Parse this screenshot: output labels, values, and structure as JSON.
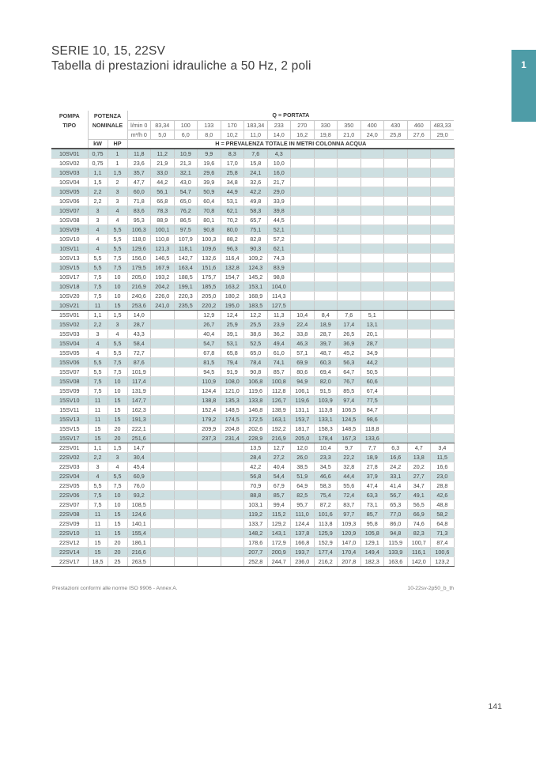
{
  "page": {
    "title_line1": "SERIE 10, 15, 22SV",
    "title_line2": "Tabella di prestazioni idrauliche a 50 Hz, 2 poli",
    "section_tab": "1",
    "footer_left": "Prestazioni conformi alle norme ISO 9906 - Annex A.",
    "footer_right": "10-22sv-2p50_b_th",
    "page_number": "141"
  },
  "colors": {
    "accent_teal": "#4e9ca7",
    "row_shaded": "#cddfe1"
  },
  "table": {
    "headers": {
      "pompa": "POMPA",
      "tipo": "TIPO",
      "potenza": "POTENZA",
      "nominale": "NOMINALE",
      "kw": "kW",
      "hp": "HP",
      "q_title": "Q = PORTATA",
      "h_title": "H = PREVALENZA TOTALE IN METRI COLONNA ACQUA",
      "lmin_label": "l/min",
      "m3h_label": "m³/h",
      "lmin_values": [
        "0",
        "83,34",
        "100",
        "133",
        "170",
        "183,34",
        "233",
        "270",
        "330",
        "350",
        "400",
        "430",
        "460",
        "483,33"
      ],
      "m3h_values": [
        "0",
        "5,0",
        "6,0",
        "8,0",
        "10,2",
        "11,0",
        "14,0",
        "16,2",
        "19,8",
        "21,0",
        "24,0",
        "25,8",
        "27,6",
        "29,0"
      ]
    },
    "rows": [
      {
        "type": "10SV01",
        "kw": "0,75",
        "hp": "1",
        "h": [
          "11,8",
          "11,2",
          "10,9",
          "9,9",
          "8,3",
          "7,6",
          "4,3",
          "",
          "",
          "",
          "",
          "",
          "",
          ""
        ]
      },
      {
        "type": "10SV02",
        "kw": "0,75",
        "hp": "1",
        "h": [
          "23,6",
          "21,9",
          "21,3",
          "19,6",
          "17,0",
          "15,8",
          "10,0",
          "",
          "",
          "",
          "",
          "",
          "",
          ""
        ]
      },
      {
        "type": "10SV03",
        "kw": "1,1",
        "hp": "1,5",
        "h": [
          "35,7",
          "33,0",
          "32,1",
          "29,6",
          "25,8",
          "24,1",
          "16,0",
          "",
          "",
          "",
          "",
          "",
          "",
          ""
        ]
      },
      {
        "type": "10SV04",
        "kw": "1,5",
        "hp": "2",
        "h": [
          "47,7",
          "44,2",
          "43,0",
          "39,9",
          "34,8",
          "32,6",
          "21,7",
          "",
          "",
          "",
          "",
          "",
          "",
          ""
        ]
      },
      {
        "type": "10SV05",
        "kw": "2,2",
        "hp": "3",
        "h": [
          "60,0",
          "56,1",
          "54,7",
          "50,9",
          "44,9",
          "42,2",
          "29,0",
          "",
          "",
          "",
          "",
          "",
          "",
          ""
        ]
      },
      {
        "type": "10SV06",
        "kw": "2,2",
        "hp": "3",
        "h": [
          "71,8",
          "66,8",
          "65,0",
          "60,4",
          "53,1",
          "49,8",
          "33,9",
          "",
          "",
          "",
          "",
          "",
          "",
          ""
        ]
      },
      {
        "type": "10SV07",
        "kw": "3",
        "hp": "4",
        "h": [
          "83,6",
          "78,3",
          "76,2",
          "70,8",
          "62,1",
          "58,3",
          "39,8",
          "",
          "",
          "",
          "",
          "",
          "",
          ""
        ]
      },
      {
        "type": "10SV08",
        "kw": "3",
        "hp": "4",
        "h": [
          "95,3",
          "88,9",
          "86,5",
          "80,1",
          "70,2",
          "65,7",
          "44,5",
          "",
          "",
          "",
          "",
          "",
          "",
          ""
        ]
      },
      {
        "type": "10SV09",
        "kw": "4",
        "hp": "5,5",
        "h": [
          "106,3",
          "100,1",
          "97,5",
          "90,8",
          "80,0",
          "75,1",
          "52,1",
          "",
          "",
          "",
          "",
          "",
          "",
          ""
        ]
      },
      {
        "type": "10SV10",
        "kw": "4",
        "hp": "5,5",
        "h": [
          "118,0",
          "110,8",
          "107,9",
          "100,3",
          "88,2",
          "82,8",
          "57,2",
          "",
          "",
          "",
          "",
          "",
          "",
          ""
        ]
      },
      {
        "type": "10SV11",
        "kw": "4",
        "hp": "5,5",
        "h": [
          "129,6",
          "121,3",
          "118,1",
          "109,6",
          "96,3",
          "90,3",
          "62,1",
          "",
          "",
          "",
          "",
          "",
          "",
          ""
        ]
      },
      {
        "type": "10SV13",
        "kw": "5,5",
        "hp": "7,5",
        "h": [
          "156,0",
          "146,5",
          "142,7",
          "132,6",
          "116,4",
          "109,2",
          "74,3",
          "",
          "",
          "",
          "",
          "",
          "",
          ""
        ]
      },
      {
        "type": "10SV15",
        "kw": "5,5",
        "hp": "7,5",
        "h": [
          "179,5",
          "167,9",
          "163,4",
          "151,6",
          "132,8",
          "124,3",
          "83,9",
          "",
          "",
          "",
          "",
          "",
          "",
          ""
        ]
      },
      {
        "type": "10SV17",
        "kw": "7,5",
        "hp": "10",
        "h": [
          "205,0",
          "193,2",
          "188,5",
          "175,7",
          "154,7",
          "145,2",
          "98,8",
          "",
          "",
          "",
          "",
          "",
          "",
          ""
        ]
      },
      {
        "type": "10SV18",
        "kw": "7,5",
        "hp": "10",
        "h": [
          "216,9",
          "204,2",
          "199,1",
          "185,5",
          "163,2",
          "153,1",
          "104,0",
          "",
          "",
          "",
          "",
          "",
          "",
          ""
        ]
      },
      {
        "type": "10SV20",
        "kw": "7,5",
        "hp": "10",
        "h": [
          "240,6",
          "226,0",
          "220,3",
          "205,0",
          "180,2",
          "168,9",
          "114,3",
          "",
          "",
          "",
          "",
          "",
          "",
          ""
        ]
      },
      {
        "type": "10SV21",
        "kw": "11",
        "hp": "15",
        "section_end": true,
        "h": [
          "253,6",
          "241,0",
          "235,5",
          "220,2",
          "195,0",
          "183,5",
          "127,5",
          "",
          "",
          "",
          "",
          "",
          "",
          ""
        ]
      },
      {
        "type": "15SV01",
        "kw": "1,1",
        "hp": "1,5",
        "h": [
          "14,0",
          "",
          "",
          "12,9",
          "12,4",
          "12,2",
          "11,3",
          "10,4",
          "8,4",
          "7,6",
          "5,1",
          "",
          "",
          ""
        ]
      },
      {
        "type": "15SV02",
        "kw": "2,2",
        "hp": "3",
        "h": [
          "28,7",
          "",
          "",
          "26,7",
          "25,9",
          "25,5",
          "23,9",
          "22,4",
          "18,9",
          "17,4",
          "13,1",
          "",
          "",
          ""
        ]
      },
      {
        "type": "15SV03",
        "kw": "3",
        "hp": "4",
        "h": [
          "43,3",
          "",
          "",
          "40,4",
          "39,1",
          "38,6",
          "36,2",
          "33,8",
          "28,7",
          "26,5",
          "20,1",
          "",
          "",
          ""
        ]
      },
      {
        "type": "15SV04",
        "kw": "4",
        "hp": "5,5",
        "h": [
          "58,4",
          "",
          "",
          "54,7",
          "53,1",
          "52,5",
          "49,4",
          "46,3",
          "39,7",
          "36,9",
          "28,7",
          "",
          "",
          ""
        ]
      },
      {
        "type": "15SV05",
        "kw": "4",
        "hp": "5,5",
        "h": [
          "72,7",
          "",
          "",
          "67,8",
          "65,8",
          "65,0",
          "61,0",
          "57,1",
          "48,7",
          "45,2",
          "34,9",
          "",
          "",
          ""
        ]
      },
      {
        "type": "15SV06",
        "kw": "5,5",
        "hp": "7,5",
        "h": [
          "87,6",
          "",
          "",
          "81,5",
          "79,4",
          "78,4",
          "74,1",
          "69,9",
          "60,3",
          "56,3",
          "44,2",
          "",
          "",
          ""
        ]
      },
      {
        "type": "15SV07",
        "kw": "5,5",
        "hp": "7,5",
        "h": [
          "101,9",
          "",
          "",
          "94,5",
          "91,9",
          "90,8",
          "85,7",
          "80,6",
          "69,4",
          "64,7",
          "50,5",
          "",
          "",
          ""
        ]
      },
      {
        "type": "15SV08",
        "kw": "7,5",
        "hp": "10",
        "h": [
          "117,4",
          "",
          "",
          "110,9",
          "108,0",
          "106,8",
          "100,8",
          "94,9",
          "82,0",
          "76,7",
          "60,6",
          "",
          "",
          ""
        ]
      },
      {
        "type": "15SV09",
        "kw": "7,5",
        "hp": "10",
        "h": [
          "131,9",
          "",
          "",
          "124,4",
          "121,0",
          "119,6",
          "112,8",
          "106,1",
          "91,5",
          "85,5",
          "67,4",
          "",
          "",
          ""
        ]
      },
      {
        "type": "15SV10",
        "kw": "11",
        "hp": "15",
        "h": [
          "147,7",
          "",
          "",
          "138,8",
          "135,3",
          "133,8",
          "126,7",
          "119,6",
          "103,9",
          "97,4",
          "77,5",
          "",
          "",
          ""
        ]
      },
      {
        "type": "15SV11",
        "kw": "11",
        "hp": "15",
        "h": [
          "162,3",
          "",
          "",
          "152,4",
          "148,5",
          "146,8",
          "138,9",
          "131,1",
          "113,8",
          "106,5",
          "84,7",
          "",
          "",
          ""
        ]
      },
      {
        "type": "15SV13",
        "kw": "11",
        "hp": "15",
        "h": [
          "191,3",
          "",
          "",
          "179,2",
          "174,5",
          "172,5",
          "163,1",
          "153,7",
          "133,1",
          "124,5",
          "98,6",
          "",
          "",
          ""
        ]
      },
      {
        "type": "15SV15",
        "kw": "15",
        "hp": "20",
        "h": [
          "222,1",
          "",
          "",
          "209,9",
          "204,8",
          "202,6",
          "192,2",
          "181,7",
          "158,3",
          "148,5",
          "118,8",
          "",
          "",
          ""
        ]
      },
      {
        "type": "15SV17",
        "kw": "15",
        "hp": "20",
        "section_end": true,
        "h": [
          "251,6",
          "",
          "",
          "237,3",
          "231,4",
          "228,9",
          "216,9",
          "205,0",
          "178,4",
          "167,3",
          "133,6",
          "",
          "",
          ""
        ]
      },
      {
        "type": "22SV01",
        "kw": "1,1",
        "hp": "1,5",
        "h": [
          "14,7",
          "",
          "",
          "",
          "",
          "13,5",
          "12,7",
          "12,0",
          "10,4",
          "9,7",
          "7,7",
          "6,3",
          "4,7",
          "3,4"
        ]
      },
      {
        "type": "22SV02",
        "kw": "2,2",
        "hp": "3",
        "h": [
          "30,4",
          "",
          "",
          "",
          "",
          "28,4",
          "27,2",
          "26,0",
          "23,3",
          "22,2",
          "18,9",
          "16,6",
          "13,8",
          "11,5"
        ]
      },
      {
        "type": "22SV03",
        "kw": "3",
        "hp": "4",
        "h": [
          "45,4",
          "",
          "",
          "",
          "",
          "42,2",
          "40,4",
          "38,5",
          "34,5",
          "32,8",
          "27,8",
          "24,2",
          "20,2",
          "16,6"
        ]
      },
      {
        "type": "22SV04",
        "kw": "4",
        "hp": "5,5",
        "h": [
          "60,9",
          "",
          "",
          "",
          "",
          "56,8",
          "54,4",
          "51,9",
          "46,6",
          "44,4",
          "37,9",
          "33,1",
          "27,7",
          "23,0"
        ]
      },
      {
        "type": "22SV05",
        "kw": "5,5",
        "hp": "7,5",
        "h": [
          "76,0",
          "",
          "",
          "",
          "",
          "70,9",
          "67,9",
          "64,9",
          "58,3",
          "55,6",
          "47,4",
          "41,4",
          "34,7",
          "28,8"
        ]
      },
      {
        "type": "22SV06",
        "kw": "7,5",
        "hp": "10",
        "h": [
          "93,2",
          "",
          "",
          "",
          "",
          "88,8",
          "85,7",
          "82,5",
          "75,4",
          "72,4",
          "63,3",
          "56,7",
          "49,1",
          "42,6"
        ]
      },
      {
        "type": "22SV07",
        "kw": "7,5",
        "hp": "10",
        "h": [
          "108,5",
          "",
          "",
          "",
          "",
          "103,1",
          "99,4",
          "95,7",
          "87,2",
          "83,7",
          "73,1",
          "65,3",
          "56,5",
          "48,8"
        ]
      },
      {
        "type": "22SV08",
        "kw": "11",
        "hp": "15",
        "h": [
          "124,6",
          "",
          "",
          "",
          "",
          "119,2",
          "115,2",
          "111,0",
          "101,6",
          "97,7",
          "85,7",
          "77,0",
          "66,9",
          "58,2"
        ]
      },
      {
        "type": "22SV09",
        "kw": "11",
        "hp": "15",
        "h": [
          "140,1",
          "",
          "",
          "",
          "",
          "133,7",
          "129,2",
          "124,4",
          "113,8",
          "109,3",
          "95,8",
          "86,0",
          "74,6",
          "64,8"
        ]
      },
      {
        "type": "22SV10",
        "kw": "11",
        "hp": "15",
        "h": [
          "155,4",
          "",
          "",
          "",
          "",
          "148,2",
          "143,1",
          "137,8",
          "125,9",
          "120,9",
          "105,8",
          "94,8",
          "82,3",
          "71,3"
        ]
      },
      {
        "type": "22SV12",
        "kw": "15",
        "hp": "20",
        "h": [
          "186,1",
          "",
          "",
          "",
          "",
          "178,6",
          "172,9",
          "166,8",
          "152,9",
          "147,0",
          "129,1",
          "115,9",
          "100,7",
          "87,4"
        ]
      },
      {
        "type": "22SV14",
        "kw": "15",
        "hp": "20",
        "h": [
          "216,6",
          "",
          "",
          "",
          "",
          "207,7",
          "200,9",
          "193,7",
          "177,4",
          "170,4",
          "149,4",
          "133,9",
          "116,1",
          "100,6"
        ]
      },
      {
        "type": "22SV17",
        "kw": "18,5",
        "hp": "25",
        "section_end": true,
        "h": [
          "263,5",
          "",
          "",
          "",
          "",
          "252,8",
          "244,7",
          "236,0",
          "216,2",
          "207,8",
          "182,3",
          "163,6",
          "142,0",
          "123,2"
        ]
      }
    ]
  }
}
